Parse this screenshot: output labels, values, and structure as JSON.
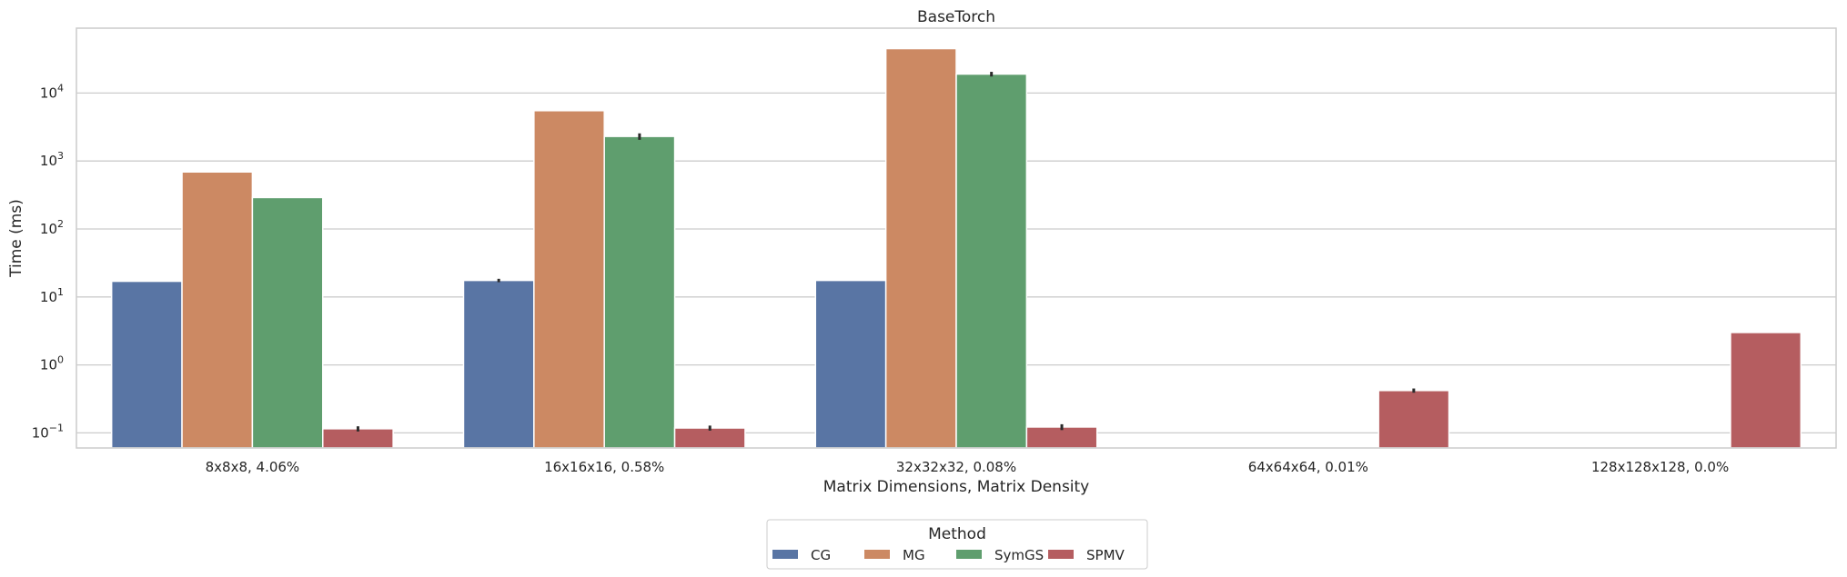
{
  "chart_data": {
    "type": "bar",
    "title": "BaseTorch",
    "xlabel": "Matrix Dimensions, Matrix Density",
    "ylabel": "Time (ms)",
    "yscale": "log",
    "ylim": [
      0.06,
      90000
    ],
    "yticks": [
      {
        "value": 0.1,
        "base": "10",
        "exp": "−1"
      },
      {
        "value": 1,
        "base": "10",
        "exp": "0"
      },
      {
        "value": 10,
        "base": "10",
        "exp": "1"
      },
      {
        "value": 100,
        "base": "10",
        "exp": "2"
      },
      {
        "value": 1000,
        "base": "10",
        "exp": "3"
      },
      {
        "value": 10000,
        "base": "10",
        "exp": "4"
      }
    ],
    "grid": true,
    "categories": [
      "8x8x8, 4.06%",
      "16x16x16, 0.58%",
      "32x32x32, 0.08%",
      "64x64x64, 0.01%",
      "128x128x128, 0.0%"
    ],
    "series": [
      {
        "name": "CG",
        "color": "#5975a4",
        "values": [
          17,
          17.5,
          17.5,
          null,
          null
        ],
        "errors": [
          null,
          1,
          null,
          null,
          null
        ]
      },
      {
        "name": "MG",
        "color": "#cc8963",
        "values": [
          690,
          5500,
          45000,
          null,
          null
        ],
        "errors": [
          null,
          null,
          null,
          null,
          null
        ]
      },
      {
        "name": "SymGS",
        "color": "#5f9e6e",
        "values": [
          290,
          2300,
          19000,
          null,
          null
        ],
        "errors": [
          null,
          250,
          1500,
          null,
          null
        ]
      },
      {
        "name": "SPMV",
        "color": "#b55d60",
        "values": [
          0.115,
          0.118,
          0.122,
          0.42,
          3.0
        ],
        "errors": [
          0.01,
          0.01,
          0.012,
          0.03,
          null
        ]
      }
    ],
    "legend": {
      "title": "Method",
      "placement": "bottom-center"
    }
  }
}
